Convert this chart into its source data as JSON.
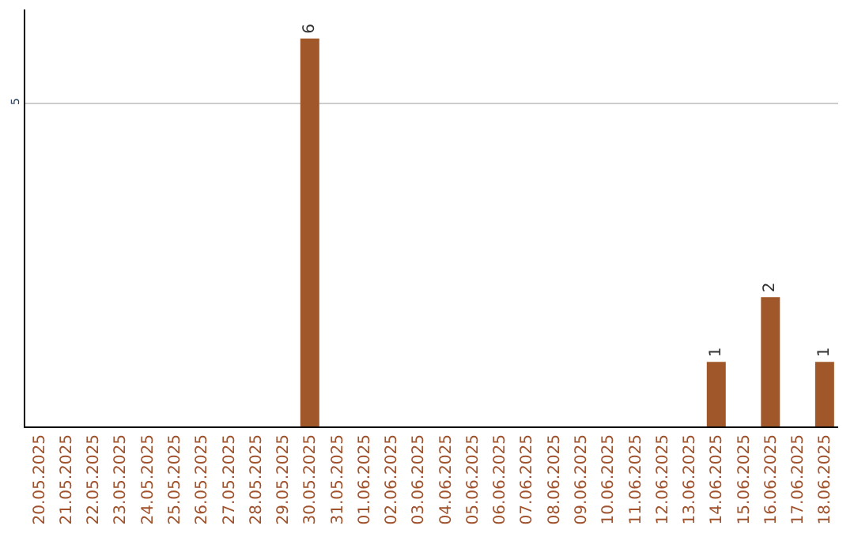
{
  "chart_data": {
    "type": "bar",
    "categories": [
      "20.05.2025",
      "21.05.2025",
      "22.05.2025",
      "23.05.2025",
      "24.05.2025",
      "25.05.2025",
      "26.05.2025",
      "27.05.2025",
      "28.05.2025",
      "29.05.2025",
      "30.05.2025",
      "31.05.2025",
      "01.06.2025",
      "02.06.2025",
      "03.06.2025",
      "04.06.2025",
      "05.06.2025",
      "06.06.2025",
      "07.06.2025",
      "08.06.2025",
      "09.06.2025",
      "10.06.2025",
      "11.06.2025",
      "12.06.2025",
      "13.06.2025",
      "14.06.2025",
      "15.06.2025",
      "16.06.2025",
      "17.06.2025",
      "18.06.2025"
    ],
    "values": [
      0,
      0,
      0,
      0,
      0,
      0,
      0,
      0,
      0,
      0,
      6,
      0,
      0,
      0,
      0,
      0,
      0,
      0,
      0,
      0,
      0,
      0,
      0,
      0,
      0,
      1,
      0,
      2,
      0,
      1
    ],
    "value_labels": [
      null,
      null,
      null,
      null,
      null,
      null,
      null,
      null,
      null,
      null,
      "6",
      null,
      null,
      null,
      null,
      null,
      null,
      null,
      null,
      null,
      null,
      null,
      null,
      null,
      null,
      "1",
      null,
      "2",
      null,
      "1"
    ],
    "color": "#a0582a",
    "ylim": [
      0,
      6.45
    ],
    "yticks": [
      5
    ],
    "grid": "y",
    "legend": false
  }
}
